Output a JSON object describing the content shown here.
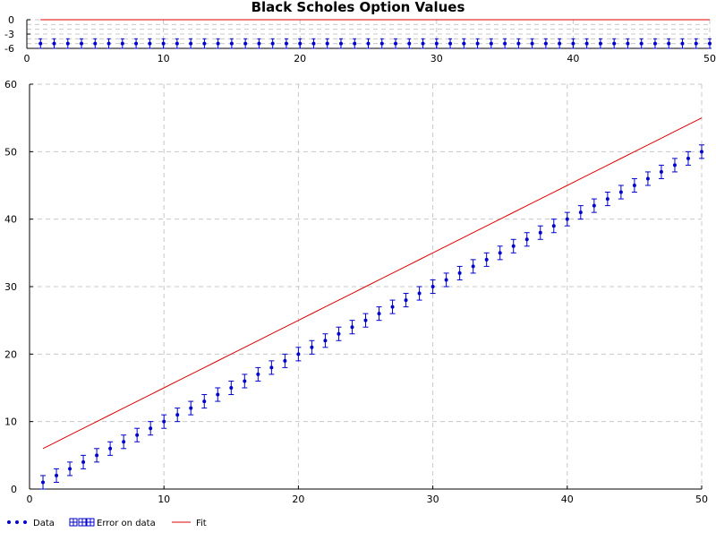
{
  "chart_data": [
    {
      "id": "residual-panel",
      "type": "scatter",
      "title": "Black Scholes Option Values",
      "xlim": [
        0,
        50
      ],
      "ylim": [
        -6,
        0
      ],
      "x_ticks": [
        0,
        10,
        20,
        30,
        40,
        50
      ],
      "y_ticks": [
        0,
        -3,
        -6
      ],
      "grid": true,
      "series": [
        {
          "role": "data",
          "x": [
            1,
            2,
            3,
            4,
            5,
            6,
            7,
            8,
            9,
            10,
            11,
            12,
            13,
            14,
            15,
            16,
            17,
            18,
            19,
            20,
            21,
            22,
            23,
            24,
            25,
            26,
            27,
            28,
            29,
            30,
            31,
            32,
            33,
            34,
            35,
            36,
            37,
            38,
            39,
            40,
            41,
            42,
            43,
            44,
            45,
            46,
            47,
            48,
            49,
            50
          ],
          "y": [
            -5,
            -5,
            -5,
            -5,
            -5,
            -5,
            -5,
            -5,
            -5,
            -5,
            -5,
            -5,
            -5,
            -5,
            -5,
            -5,
            -5,
            -5,
            -5,
            -5,
            -5,
            -5,
            -5,
            -5,
            -5,
            -5,
            -5,
            -5,
            -5,
            -5,
            -5,
            -5,
            -5,
            -5,
            -5,
            -5,
            -5,
            -5,
            -5,
            -5,
            -5,
            -5,
            -5,
            -5,
            -5,
            -5,
            -5,
            -5,
            -5,
            -5
          ],
          "error": 1,
          "color": "#0000cc"
        },
        {
          "role": "fit",
          "x": [
            1,
            50
          ],
          "y": [
            0,
            0
          ],
          "color": "#dd0000"
        }
      ]
    },
    {
      "id": "main-panel",
      "type": "scatter",
      "xlim": [
        0,
        50
      ],
      "ylim": [
        0,
        60
      ],
      "x_ticks": [
        0,
        10,
        20,
        30,
        40,
        50
      ],
      "y_ticks": [
        0,
        10,
        20,
        30,
        40,
        50,
        60
      ],
      "grid": true,
      "legend_position": "bottom-left",
      "series": [
        {
          "role": "data",
          "name": "Data",
          "x": [
            1,
            2,
            3,
            4,
            5,
            6,
            7,
            8,
            9,
            10,
            11,
            12,
            13,
            14,
            15,
            16,
            17,
            18,
            19,
            20,
            21,
            22,
            23,
            24,
            25,
            26,
            27,
            28,
            29,
            30,
            31,
            32,
            33,
            34,
            35,
            36,
            37,
            38,
            39,
            40,
            41,
            42,
            43,
            44,
            45,
            46,
            47,
            48,
            49,
            50
          ],
          "y": [
            1,
            2,
            3,
            4,
            5,
            6,
            7,
            8,
            9,
            10,
            11,
            12,
            13,
            14,
            15,
            16,
            17,
            18,
            19,
            20,
            21,
            22,
            23,
            24,
            25,
            26,
            27,
            28,
            29,
            30,
            31,
            32,
            33,
            34,
            35,
            36,
            37,
            38,
            39,
            40,
            41,
            42,
            43,
            44,
            45,
            46,
            47,
            48,
            49,
            50
          ],
          "error": 1,
          "color": "#0000cc"
        },
        {
          "role": "error",
          "name": "Error on data",
          "color": "#0000cc"
        },
        {
          "role": "fit",
          "name": "Fit",
          "x": [
            1,
            2,
            3,
            4,
            5,
            6,
            7,
            8,
            9,
            10,
            11,
            12,
            13,
            14,
            15,
            16,
            17,
            18,
            19,
            20,
            21,
            22,
            23,
            24,
            25,
            26,
            27,
            28,
            29,
            30,
            31,
            32,
            33,
            34,
            35,
            36,
            37,
            38,
            39,
            40,
            41,
            42,
            43,
            44,
            45,
            46,
            47,
            48,
            49,
            50
          ],
          "y": [
            6,
            7,
            8,
            9,
            10,
            11,
            12,
            13,
            14,
            15,
            16,
            17,
            18,
            19,
            20,
            21,
            22,
            23,
            24,
            25,
            26,
            27,
            28,
            29,
            30,
            31,
            32,
            33,
            34,
            35,
            36,
            37,
            38,
            39,
            40,
            41,
            42,
            43,
            44,
            45,
            46,
            47,
            48,
            49,
            50,
            51,
            52,
            53,
            54,
            55
          ],
          "color": "#dd0000"
        }
      ]
    }
  ]
}
